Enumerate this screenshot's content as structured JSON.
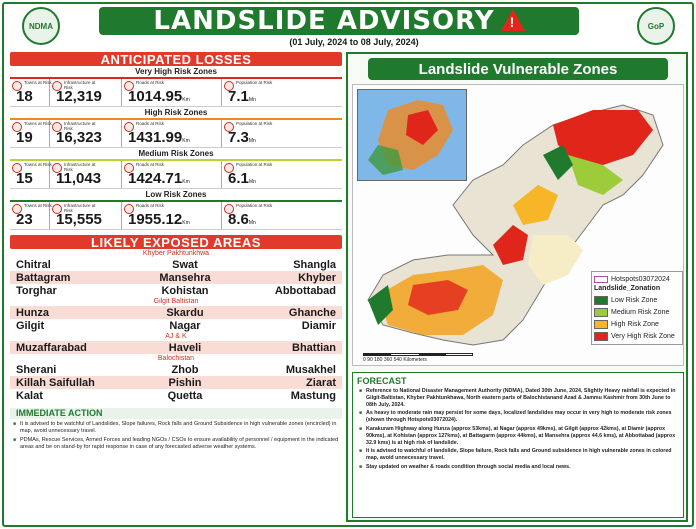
{
  "header": {
    "title": "LANDSLIDE ADVISORY",
    "date_range": "(01 July, 2024 to 08 July, 2024)"
  },
  "losses": {
    "title": "ANTICIPATED LOSSES",
    "labels": {
      "towns": "Towns at Risk",
      "infra": "Infrastructure at Risk",
      "roads": "Roads at Risk",
      "population": "Population at Risk"
    },
    "units": {
      "roads": "Km",
      "population": "Mn"
    },
    "zones": [
      {
        "name": "Very High Risk Zones",
        "towns": "18",
        "infra": "12,319",
        "roads": "1014.95",
        "population": "7.1",
        "color": "#e0261b"
      },
      {
        "name": "High Risk Zones",
        "towns": "19",
        "infra": "16,323",
        "roads": "1431.99",
        "population": "7.3",
        "color": "#f08a1f"
      },
      {
        "name": "Medium Risk Zones",
        "towns": "15",
        "infra": "11,043",
        "roads": "1424.71",
        "population": "6.1",
        "color": "#b8d434"
      },
      {
        "name": "Low Risk Zones",
        "towns": "23",
        "infra": "15,555",
        "roads": "1955.12",
        "population": "8.6",
        "color": "#1f7a2e"
      }
    ]
  },
  "exposed": {
    "title": "LIKELY EXPOSED AREAS",
    "regions": [
      {
        "name": "Khyber Pakhtunkhwa",
        "rows": [
          [
            "Chitral",
            "Swat",
            "Shangla"
          ],
          [
            "Battagram",
            "Mansehra",
            "Khyber"
          ],
          [
            "Torghar",
            "Kohistan",
            "Abbottabad"
          ]
        ]
      },
      {
        "name": "Gilgit Baltistan",
        "rows": [
          [
            "Hunza",
            "Skardu",
            "Ghanche"
          ],
          [
            "Gilgit",
            "Nagar",
            "Diamir"
          ]
        ]
      },
      {
        "name": "AJ & K",
        "rows": [
          [
            "Muzaffarabad",
            "Haveli",
            "Bhattian"
          ]
        ]
      },
      {
        "name": "Balochistan",
        "rows": [
          [
            "Sherani",
            "Zhob",
            "Musakhel"
          ],
          [
            "Killah Saifullah",
            "Pishin",
            "Ziarat"
          ],
          [
            "Kalat",
            "Quetta",
            "Mastung"
          ]
        ]
      }
    ]
  },
  "immediate": {
    "title": "IMMEDIATE ACTION",
    "items": [
      "It is advised to be watchful of Landslides, Slope failures, Rock falls and Ground Subsidence in high vulnerable zones (encircled) in map, avoid unnecessary travel.",
      "PDMAs, Rescue Services, Armed Forces and leading NGOs / CSOs to ensure availability of personnel / equipment in the indicated areas and be on stand-by for rapid response in case of any forecasted adverse weather systems."
    ]
  },
  "map": {
    "title": "Landslide Vulnerable Zones",
    "legend_title": "Landslide_Zonation",
    "hotspot_label": "Hotspots03072024",
    "scale_text": "0   90   180        360        540   Kilometers",
    "legend": [
      {
        "label": "Low Risk Zone",
        "color": "#1f7a2e"
      },
      {
        "label": "Medium Risk Zone",
        "color": "#9ccc3a"
      },
      {
        "label": "High Risk Zone",
        "color": "#f7b528"
      },
      {
        "label": "Very High Risk Zone",
        "color": "#e0261b"
      }
    ]
  },
  "forecast": {
    "title": "FORECAST",
    "items": [
      "Reference to National Disaster Management Authority (NDMA), Dated 30th June, 2024, Slightly Heavy rainfall is expected in Gilgit-Baltistan, Khyber Pakhtunkhawa, North eastern parts of Balochistanand Azad & Jammu Kashmir from 30th June to 08th July, 2024.",
      "As heavy to moderate rain may persist for some days, localized landslides may occur in very high to moderate risk zones (shown through Hotspots03072024).",
      "Karakuram Highway along Hunza (approx 53kms), at Nagar (approx 49kms), at Gilgit (approx 42kms), at Diamir (approx 90kms), at Kohistan (approx 127kms), at Battagarm (approx 44kms), at Mansehra (approx 44.6 kms), at Abbottabad (approx 32.9 kms) is at high risk of landslide.",
      "It is advised to watchful of landslide, Slope failure, Rock falls and Ground subsidence in high vulnerable zones in colored map, avoid unnecessary travel.",
      "Stay updated on weather & roads condition through social media and local news."
    ]
  }
}
